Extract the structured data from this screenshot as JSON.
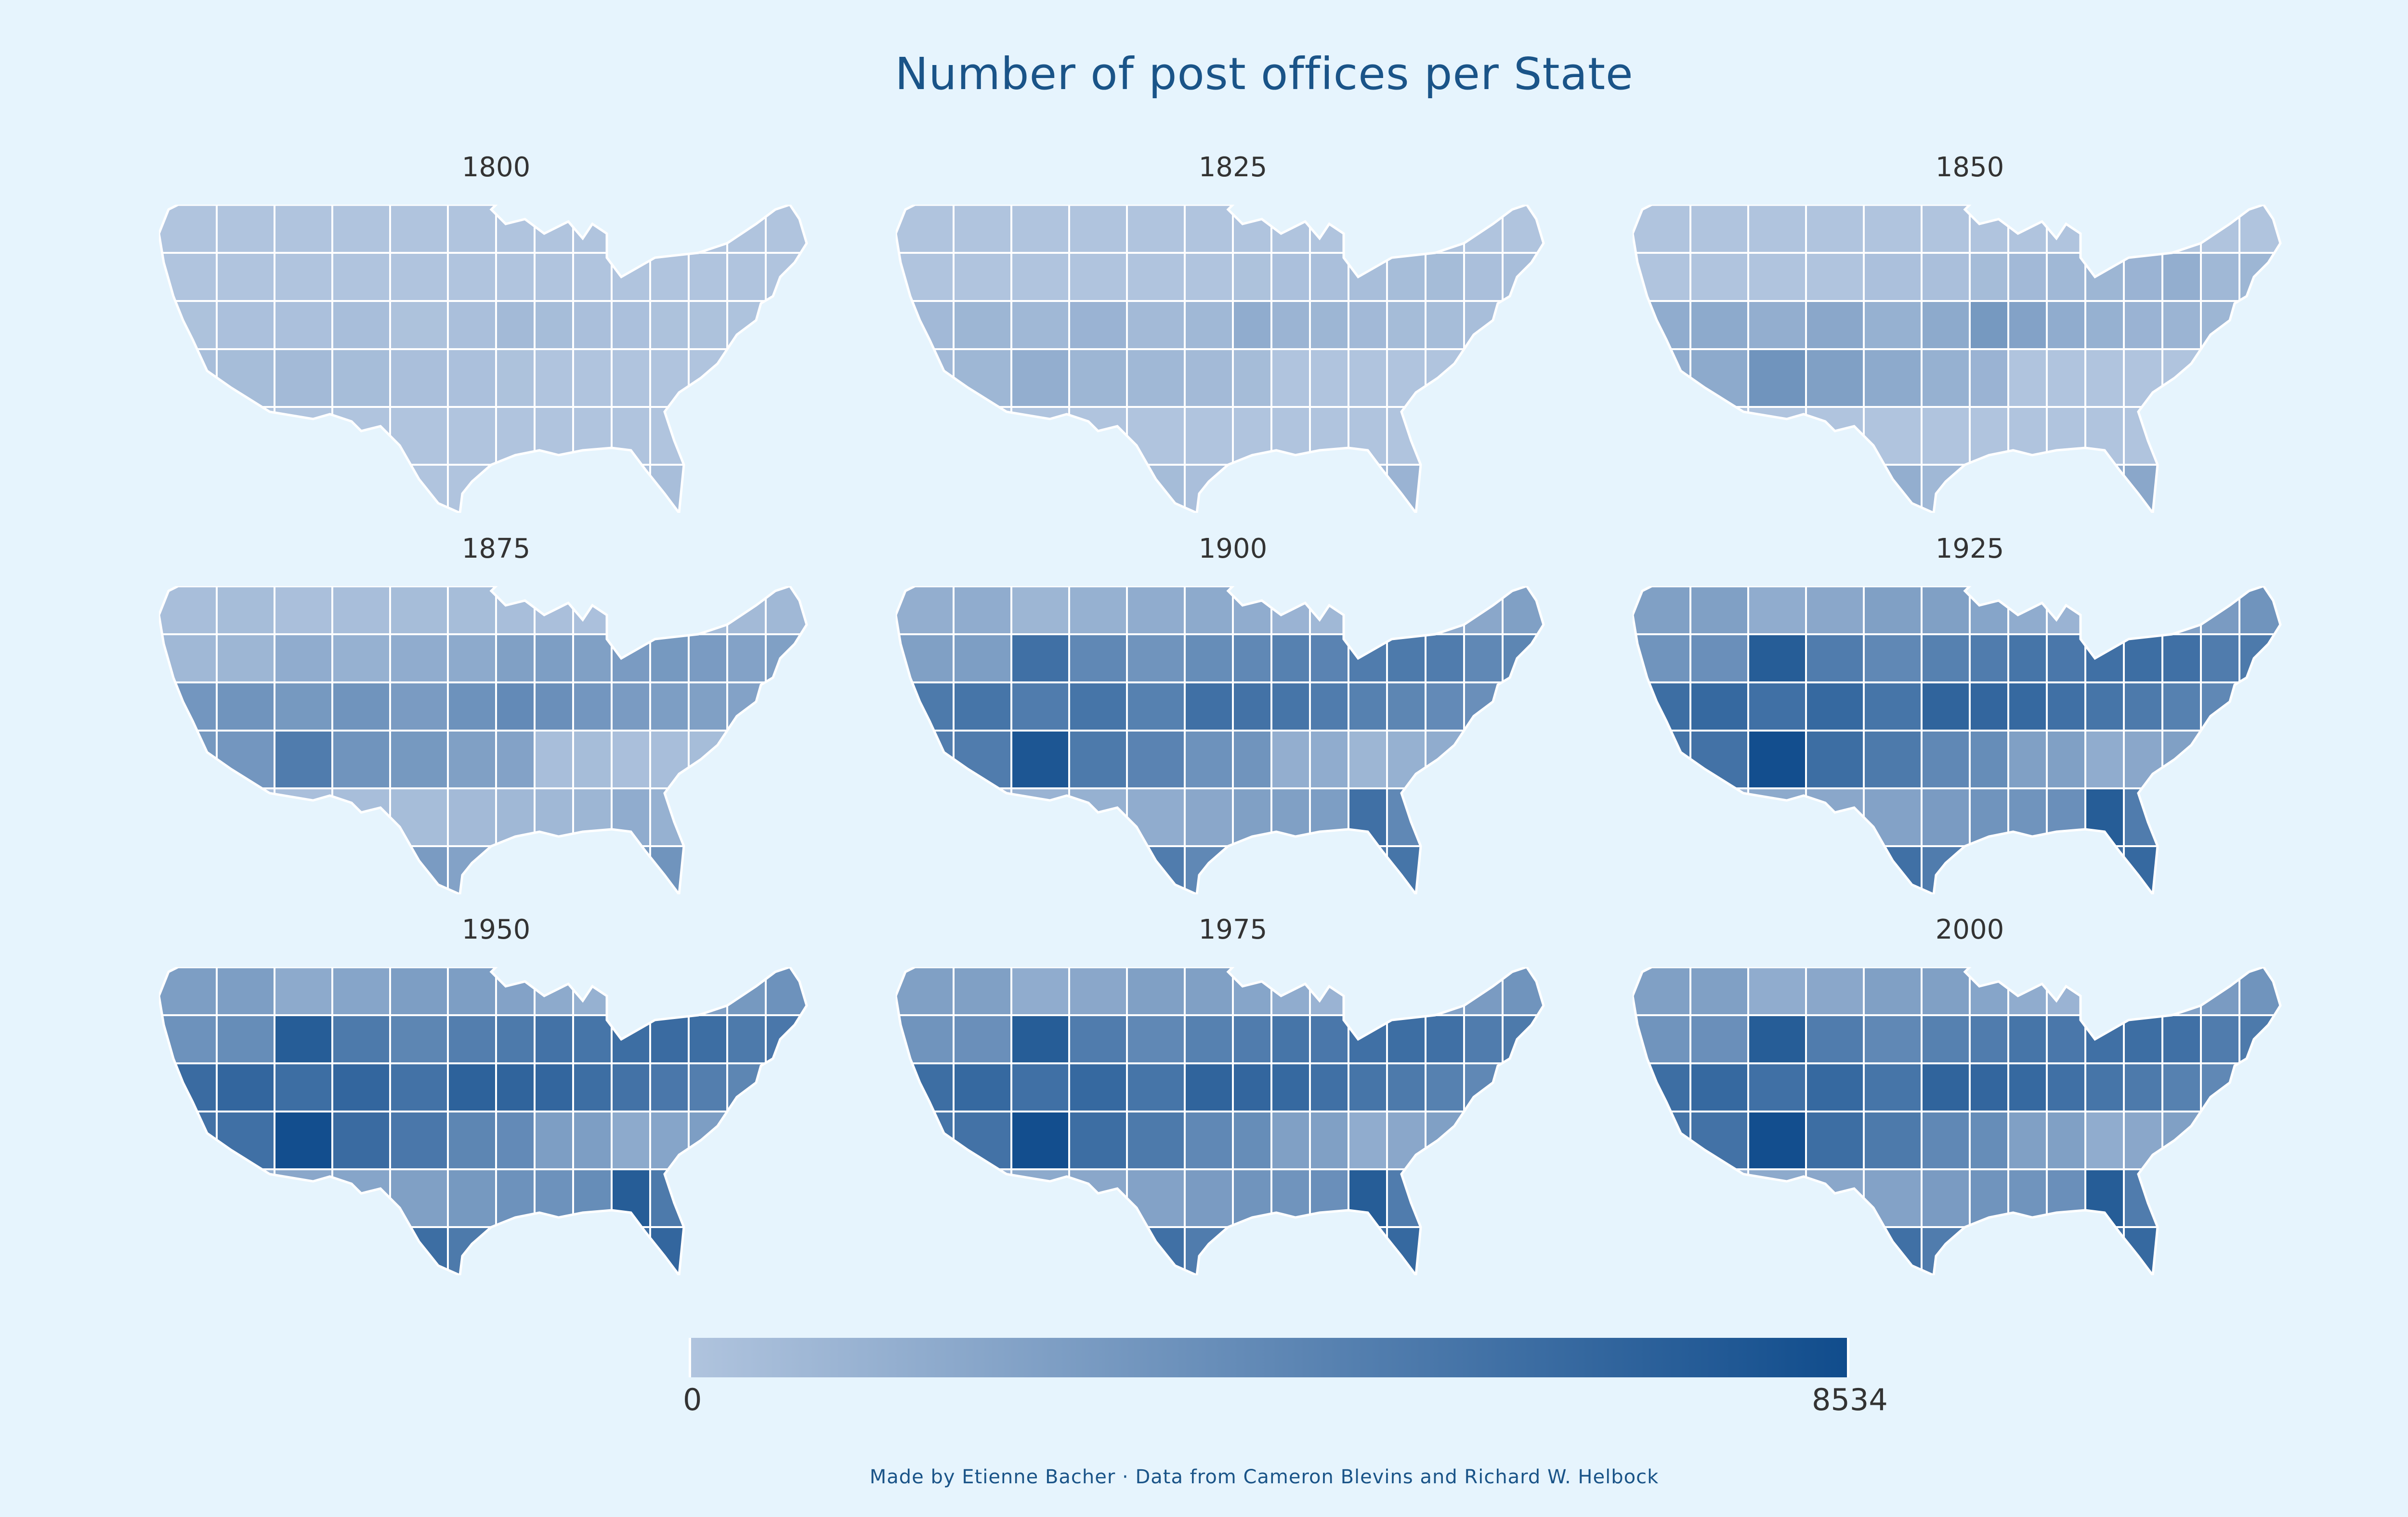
{
  "title": "Number of post offices per State",
  "caption": "Made by Etienne Bacher · Data from Cameron Blevins and Richard W. Helbock",
  "legend": {
    "min_label": "0",
    "max_label": "8534",
    "color_low": "#b0c4de",
    "color_high": "#104c8c"
  },
  "colors": {
    "background": "#e6f4fd",
    "title": "#1a5488",
    "state_border": "#ffffff"
  },
  "panels": [
    {
      "year": "1800",
      "levels": [
        0,
        0,
        0,
        0,
        0,
        0,
        0,
        0,
        0,
        0,
        0,
        0,
        0,
        0,
        0,
        0,
        0,
        0,
        0,
        0,
        0,
        0,
        0,
        0,
        0,
        0,
        0,
        0,
        0.02,
        0.03,
        0.03,
        0.05,
        0.02,
        0.04,
        0.08,
        0.06,
        0.04,
        0.03,
        0.02,
        0.02,
        0.01,
        0.03,
        0.05,
        0.06,
        0.08,
        0.06,
        0.04,
        0.03,
        0.02
      ]
    },
    {
      "year": "1825",
      "levels": [
        0,
        0,
        0,
        0,
        0,
        0,
        0,
        0,
        0,
        0,
        0,
        0,
        0,
        0,
        0,
        0,
        0,
        0,
        0,
        0,
        0.02,
        0.03,
        0.04,
        0.05,
        0.06,
        0.07,
        0.04,
        0.05,
        0.09,
        0.12,
        0.1,
        0.14,
        0.08,
        0.1,
        0.2,
        0.13,
        0.12,
        0.09,
        0.07,
        0.06,
        0.05,
        0.08,
        0.09,
        0.11,
        0.18,
        0.12,
        0.1,
        0.08,
        0.07
      ]
    },
    {
      "year": "1850",
      "levels": [
        0,
        0,
        0,
        0,
        0,
        0,
        0,
        0,
        0,
        0,
        0,
        0,
        0,
        0,
        0,
        0,
        0,
        0,
        0.03,
        0.04,
        0.07,
        0.09,
        0.1,
        0.12,
        0.14,
        0.18,
        0.1,
        0.12,
        0.2,
        0.22,
        0.18,
        0.24,
        0.16,
        0.22,
        0.36,
        0.28,
        0.2,
        0.16,
        0.14,
        0.13,
        0.12,
        0.16,
        0.2,
        0.22,
        0.4,
        0.3,
        0.22,
        0.16,
        0.14
      ]
    },
    {
      "year": "1875",
      "levels": [
        0.05,
        0.06,
        0.04,
        0.05,
        0.06,
        0.06,
        0.05,
        0.04,
        0.03,
        0.04,
        0.05,
        0.06,
        0.08,
        0.1,
        0.1,
        0.12,
        0.2,
        0.16,
        0.2,
        0.22,
        0.3,
        0.32,
        0.3,
        0.34,
        0.36,
        0.34,
        0.28,
        0.3,
        0.38,
        0.4,
        0.36,
        0.4,
        0.34,
        0.42,
        0.48,
        0.44,
        0.38,
        0.34,
        0.32,
        0.3,
        0.28,
        0.3,
        0.36,
        0.38,
        0.6,
        0.4,
        0.36,
        0.3,
        0.28
      ]
    },
    {
      "year": "1900",
      "levels": [
        0.18,
        0.2,
        0.12,
        0.16,
        0.2,
        0.22,
        0.2,
        0.14,
        0.1,
        0.14,
        0.16,
        0.2,
        0.24,
        0.3,
        0.3,
        0.32,
        0.7,
        0.5,
        0.4,
        0.46,
        0.5,
        0.56,
        0.54,
        0.6,
        0.62,
        0.6,
        0.5,
        0.52,
        0.62,
        0.66,
        0.6,
        0.66,
        0.56,
        0.7,
        0.68,
        0.66,
        0.6,
        0.56,
        0.52,
        0.48,
        0.44,
        0.5,
        0.58,
        0.6,
        0.92,
        0.62,
        0.54,
        0.42,
        0.4
      ]
    },
    {
      "year": "1925",
      "levels": [
        0.3,
        0.3,
        0.2,
        0.24,
        0.3,
        0.3,
        0.26,
        0.2,
        0.14,
        0.22,
        0.24,
        0.28,
        0.34,
        0.4,
        0.4,
        0.44,
        0.86,
        0.6,
        0.5,
        0.56,
        0.6,
        0.66,
        0.64,
        0.7,
        0.72,
        0.7,
        0.6,
        0.62,
        0.72,
        0.76,
        0.7,
        0.76,
        0.66,
        0.8,
        0.78,
        0.76,
        0.7,
        0.66,
        0.62,
        0.56,
        0.5,
        0.58,
        0.66,
        0.68,
        0.98,
        0.72,
        0.62,
        0.5,
        0.46
      ]
    },
    {
      "year": "1950",
      "levels": [
        0.32,
        0.32,
        0.22,
        0.26,
        0.32,
        0.32,
        0.28,
        0.22,
        0.16,
        0.24,
        0.26,
        0.3,
        0.36,
        0.42,
        0.42,
        0.46,
        0.86,
        0.62,
        0.52,
        0.58,
        0.62,
        0.68,
        0.66,
        0.72,
        0.74,
        0.72,
        0.62,
        0.64,
        0.74,
        0.78,
        0.72,
        0.78,
        0.68,
        0.82,
        0.8,
        0.78,
        0.72,
        0.68,
        0.64,
        0.58,
        0.52,
        0.6,
        0.68,
        0.7,
        0.98,
        0.74,
        0.64,
        0.52,
        0.48
      ]
    },
    {
      "year": "1975",
      "levels": [
        0.3,
        0.3,
        0.2,
        0.24,
        0.3,
        0.3,
        0.26,
        0.2,
        0.14,
        0.22,
        0.24,
        0.28,
        0.34,
        0.4,
        0.4,
        0.44,
        0.86,
        0.6,
        0.5,
        0.56,
        0.6,
        0.66,
        0.64,
        0.7,
        0.72,
        0.7,
        0.6,
        0.62,
        0.72,
        0.76,
        0.7,
        0.76,
        0.66,
        0.8,
        0.78,
        0.76,
        0.7,
        0.66,
        0.62,
        0.56,
        0.5,
        0.58,
        0.66,
        0.68,
        0.98,
        0.72,
        0.62,
        0.5,
        0.46
      ]
    },
    {
      "year": "2000",
      "levels": [
        0.3,
        0.3,
        0.2,
        0.24,
        0.3,
        0.3,
        0.26,
        0.2,
        0.14,
        0.22,
        0.24,
        0.28,
        0.34,
        0.4,
        0.4,
        0.44,
        0.86,
        0.6,
        0.5,
        0.56,
        0.6,
        0.66,
        0.64,
        0.7,
        0.72,
        0.7,
        0.6,
        0.62,
        0.72,
        0.76,
        0.7,
        0.76,
        0.66,
        0.8,
        0.78,
        0.76,
        0.7,
        0.66,
        0.62,
        0.56,
        0.5,
        0.58,
        0.66,
        0.68,
        0.98,
        0.72,
        0.62,
        0.5,
        0.46
      ]
    }
  ]
}
